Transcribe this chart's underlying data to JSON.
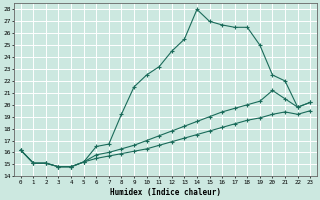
{
  "xlabel": "Humidex (Indice chaleur)",
  "ylabel": "",
  "bg_color": "#cce8e0",
  "grid_color": "#ffffff",
  "line_color": "#1a6b5a",
  "xlim": [
    -0.5,
    23.5
  ],
  "ylim": [
    14,
    28.5
  ],
  "xticks": [
    0,
    1,
    2,
    3,
    4,
    5,
    6,
    7,
    8,
    9,
    10,
    11,
    12,
    13,
    14,
    15,
    16,
    17,
    18,
    19,
    20,
    21,
    22,
    23
  ],
  "yticks": [
    14,
    15,
    16,
    17,
    18,
    19,
    20,
    21,
    22,
    23,
    24,
    25,
    26,
    27,
    28
  ],
  "line1_x": [
    0,
    1,
    2,
    3,
    4,
    5,
    6,
    7,
    8,
    9,
    10,
    11,
    12,
    13,
    14,
    15,
    16,
    17,
    18,
    19,
    20,
    21,
    22,
    23
  ],
  "line1_y": [
    16.2,
    15.1,
    15.1,
    14.8,
    14.8,
    15.2,
    16.5,
    16.7,
    19.2,
    21.5,
    22.5,
    23.2,
    24.5,
    25.5,
    28.0,
    27.0,
    26.7,
    26.5,
    26.5,
    25.0,
    22.5,
    22.0,
    19.8,
    20.2
  ],
  "line2_x": [
    0,
    1,
    2,
    3,
    4,
    5,
    6,
    7,
    8,
    9,
    10,
    11,
    12,
    13,
    14,
    15,
    16,
    17,
    18,
    19,
    20,
    21,
    22,
    23
  ],
  "line2_y": [
    16.2,
    15.1,
    15.1,
    14.8,
    14.8,
    15.2,
    15.8,
    16.0,
    16.3,
    16.6,
    17.0,
    17.4,
    17.8,
    18.2,
    18.6,
    19.0,
    19.4,
    19.7,
    20.0,
    20.3,
    21.2,
    20.5,
    19.8,
    20.2
  ],
  "line3_x": [
    0,
    1,
    2,
    3,
    4,
    5,
    6,
    7,
    8,
    9,
    10,
    11,
    12,
    13,
    14,
    15,
    16,
    17,
    18,
    19,
    20,
    21,
    22,
    23
  ],
  "line3_y": [
    16.2,
    15.1,
    15.1,
    14.8,
    14.8,
    15.2,
    15.5,
    15.7,
    15.9,
    16.1,
    16.3,
    16.6,
    16.9,
    17.2,
    17.5,
    17.8,
    18.1,
    18.4,
    18.7,
    18.9,
    19.2,
    19.4,
    19.2,
    19.5
  ]
}
